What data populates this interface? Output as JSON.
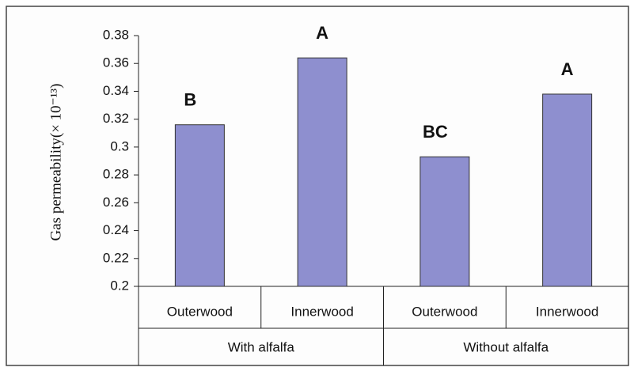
{
  "chart_data": {
    "type": "bar",
    "ylabel": "Gas permeability(× 10⁻¹³)",
    "categories": [
      "Outerwood",
      "Innerwood",
      "Outerwood",
      "Innerwood"
    ],
    "groups": [
      "With alfalfa",
      "Without alfalfa"
    ],
    "values": [
      0.316,
      0.364,
      0.293,
      0.338
    ],
    "annotations": [
      "B",
      "A",
      "BC",
      "A"
    ],
    "color": "#8e8fcf",
    "ylim": [
      0.2,
      0.38
    ],
    "yticks": [
      0.2,
      0.22,
      0.24,
      0.26,
      0.28,
      0.3,
      0.32,
      0.34,
      0.36,
      0.38
    ]
  }
}
